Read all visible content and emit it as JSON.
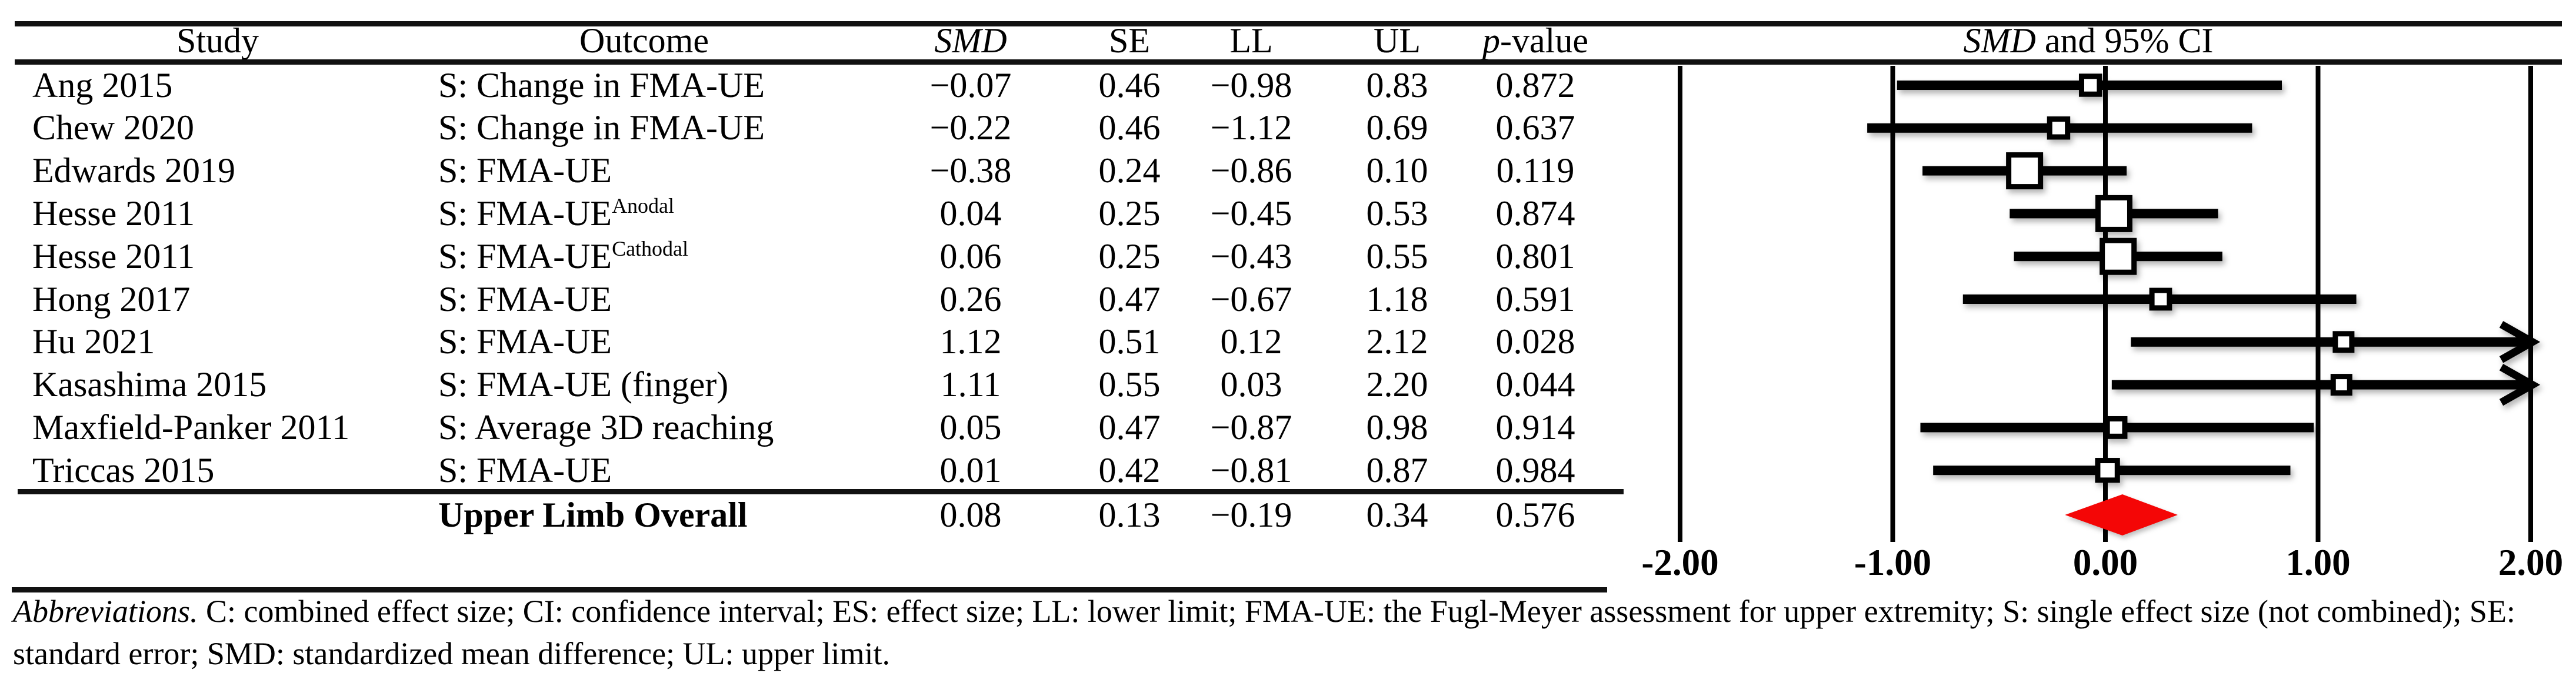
{
  "colors": {
    "ink": "#000000",
    "diamond_red": "#f40606"
  },
  "table": {
    "headers": {
      "study": "Study",
      "outcome": "Outcome",
      "smd": "SMD",
      "se": "SE",
      "ll": "LL",
      "ul": "UL",
      "p_italic": "p",
      "p_rest": "-value"
    },
    "rows": [
      {
        "study": "Ang 2015",
        "outcome": "S: Change in FMA-UE",
        "outcome_sup": "",
        "smd": "−0.07",
        "se": "0.46",
        "ll": "−0.98",
        "ul": "0.83",
        "p": "0.872"
      },
      {
        "study": "Chew 2020",
        "outcome": "S: Change in FMA-UE",
        "outcome_sup": "",
        "smd": "−0.22",
        "se": "0.46",
        "ll": "−1.12",
        "ul": "0.69",
        "p": "0.637"
      },
      {
        "study": "Edwards 2019",
        "outcome": "S: FMA-UE",
        "outcome_sup": "",
        "smd": "−0.38",
        "se": "0.24",
        "ll": "−0.86",
        "ul": "0.10",
        "p": "0.119"
      },
      {
        "study": "Hesse 2011",
        "outcome": "S: FMA-UE",
        "outcome_sup": "Anodal",
        "smd": "0.04",
        "se": "0.25",
        "ll": "−0.45",
        "ul": "0.53",
        "p": "0.874"
      },
      {
        "study": "Hesse 2011",
        "outcome": "S: FMA-UE",
        "outcome_sup": "Cathodal",
        "smd": "0.06",
        "se": "0.25",
        "ll": "−0.43",
        "ul": "0.55",
        "p": "0.801"
      },
      {
        "study": "Hong 2017",
        "outcome": "S: FMA-UE",
        "outcome_sup": "",
        "smd": "0.26",
        "se": "0.47",
        "ll": "−0.67",
        "ul": "1.18",
        "p": "0.591"
      },
      {
        "study": "Hu 2021",
        "outcome": "S: FMA-UE",
        "outcome_sup": "",
        "smd": "1.12",
        "se": "0.51",
        "ll": "0.12",
        "ul": "2.12",
        "p": "0.028"
      },
      {
        "study": "Kasashima 2015",
        "outcome": "S: FMA-UE (finger)",
        "outcome_sup": "",
        "smd": "1.11",
        "se": "0.55",
        "ll": "0.03",
        "ul": "2.20",
        "p": "0.044"
      },
      {
        "study": "Maxfield-Panker 2011",
        "outcome": "S: Average 3D reaching",
        "outcome_sup": "",
        "smd": "0.05",
        "se": "0.47",
        "ll": "−0.87",
        "ul": "0.98",
        "p": "0.914"
      },
      {
        "study": "Triccas 2015",
        "outcome": "S: FMA-UE",
        "outcome_sup": "",
        "smd": "0.01",
        "se": "0.42",
        "ll": "−0.81",
        "ul": "0.87",
        "p": "0.984"
      }
    ],
    "overall": {
      "label": "Upper Limb Overall",
      "smd": "0.08",
      "se": "0.13",
      "ll": "−0.19",
      "ul": "0.34",
      "p": "0.576"
    }
  },
  "plot": {
    "title_italic": "SMD",
    "title_rest": " and 95% CI",
    "x_tick_labels": [
      "-2.00",
      "-1.00",
      "0.00",
      "1.00",
      "2.00"
    ]
  },
  "chart_data": {
    "type": "forest",
    "title": "SMD and 95% CI",
    "x_axis": {
      "range": [
        -2,
        2
      ],
      "ticks": [
        -2,
        -1,
        0,
        1,
        2
      ],
      "tick_labels": [
        "-2.00",
        "-1.00",
        "0.00",
        "1.00",
        "2.00"
      ],
      "gridlines": true
    },
    "marker_style": "open square sized by precision (1/SE), 95% CI whisker, arrow when CI exceeds axis range",
    "studies": [
      {
        "study": "Ang 2015",
        "outcome": "S: Change in FMA-UE",
        "smd": -0.07,
        "se": 0.46,
        "ll": -0.98,
        "ul": 0.83,
        "p": 0.872
      },
      {
        "study": "Chew 2020",
        "outcome": "S: Change in FMA-UE",
        "smd": -0.22,
        "se": 0.46,
        "ll": -1.12,
        "ul": 0.69,
        "p": 0.637
      },
      {
        "study": "Edwards 2019",
        "outcome": "S: FMA-UE",
        "smd": -0.38,
        "se": 0.24,
        "ll": -0.86,
        "ul": 0.1,
        "p": 0.119
      },
      {
        "study": "Hesse 2011 (Anodal)",
        "outcome": "S: FMA-UE Anodal",
        "smd": 0.04,
        "se": 0.25,
        "ll": -0.45,
        "ul": 0.53,
        "p": 0.874
      },
      {
        "study": "Hesse 2011 (Cathodal)",
        "outcome": "S: FMA-UE Cathodal",
        "smd": 0.06,
        "se": 0.25,
        "ll": -0.43,
        "ul": 0.55,
        "p": 0.801
      },
      {
        "study": "Hong 2017",
        "outcome": "S: FMA-UE",
        "smd": 0.26,
        "se": 0.47,
        "ll": -0.67,
        "ul": 1.18,
        "p": 0.591
      },
      {
        "study": "Hu 2021",
        "outcome": "S: FMA-UE",
        "smd": 1.12,
        "se": 0.51,
        "ll": 0.12,
        "ul": 2.12,
        "p": 0.028
      },
      {
        "study": "Kasashima 2015",
        "outcome": "S: FMA-UE (finger)",
        "smd": 1.11,
        "se": 0.55,
        "ll": 0.03,
        "ul": 2.2,
        "p": 0.044
      },
      {
        "study": "Maxfield-Panker 2011",
        "outcome": "S: Average 3D reaching",
        "smd": 0.05,
        "se": 0.47,
        "ll": -0.87,
        "ul": 0.98,
        "p": 0.914
      },
      {
        "study": "Triccas 2015",
        "outcome": "S: FMA-UE",
        "smd": 0.01,
        "se": 0.42,
        "ll": -0.81,
        "ul": 0.87,
        "p": 0.984
      }
    ],
    "overall": {
      "label": "Upper Limb Overall",
      "smd": 0.08,
      "se": 0.13,
      "ll": -0.19,
      "ul": 0.34,
      "p": 0.576,
      "marker": "red diamond"
    }
  },
  "footnote": {
    "lead": "Abbreviations.",
    "rest": " C: combined effect size; CI: confidence interval; ES: effect size; LL: lower limit; FMA-UE: the Fugl-Meyer assessment for upper extremity; S: single effect size (not combined); SE: standard error; SMD: standardized mean difference; UL: upper limit."
  }
}
